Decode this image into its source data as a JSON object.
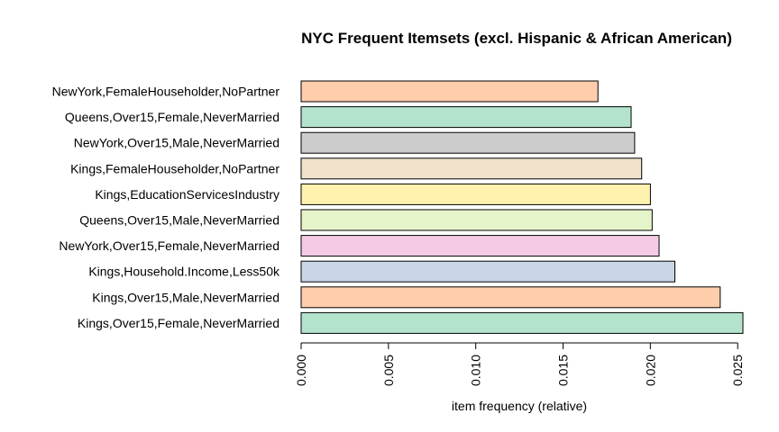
{
  "chart_data": {
    "type": "bar",
    "orientation": "horizontal",
    "title": "NYC Frequent Itemsets (excl. Hispanic & African American)",
    "xlabel": "item frequency (relative)",
    "ylabel": "",
    "categories": [
      "NewYork,FemaleHouseholder,NoPartner",
      "Queens,Over15,Female,NeverMarried",
      "NewYork,Over15,Male,NeverMarried",
      "Kings,FemaleHouseholder,NoPartner",
      "Kings,EducationServicesIndustry",
      "Queens,Over15,Male,NeverMarried",
      "NewYork,Over15,Female,NeverMarried",
      "Kings,Household.Income,Less50k",
      "Kings,Over15,Male,NeverMarried",
      "Kings,Over15,Female,NeverMarried"
    ],
    "values": [
      0.017,
      0.0189,
      0.0191,
      0.0195,
      0.02,
      0.0201,
      0.0205,
      0.0214,
      0.024,
      0.0253
    ],
    "colors": [
      "#FDCDAC",
      "#B3E2CD",
      "#CCCCCC",
      "#F1E2CC",
      "#FFF2AE",
      "#E6F5C9",
      "#F4CAE4",
      "#CBD5E8",
      "#FDCDAC",
      "#B3E2CD"
    ],
    "xlim": [
      0,
      0.0253
    ],
    "xticks": [
      0.0,
      0.005,
      0.01,
      0.015,
      0.02,
      0.025
    ],
    "xtick_labels": [
      "0.000",
      "0.005",
      "0.010",
      "0.015",
      "0.020",
      "0.025"
    ],
    "grid": false,
    "legend": "none"
  }
}
